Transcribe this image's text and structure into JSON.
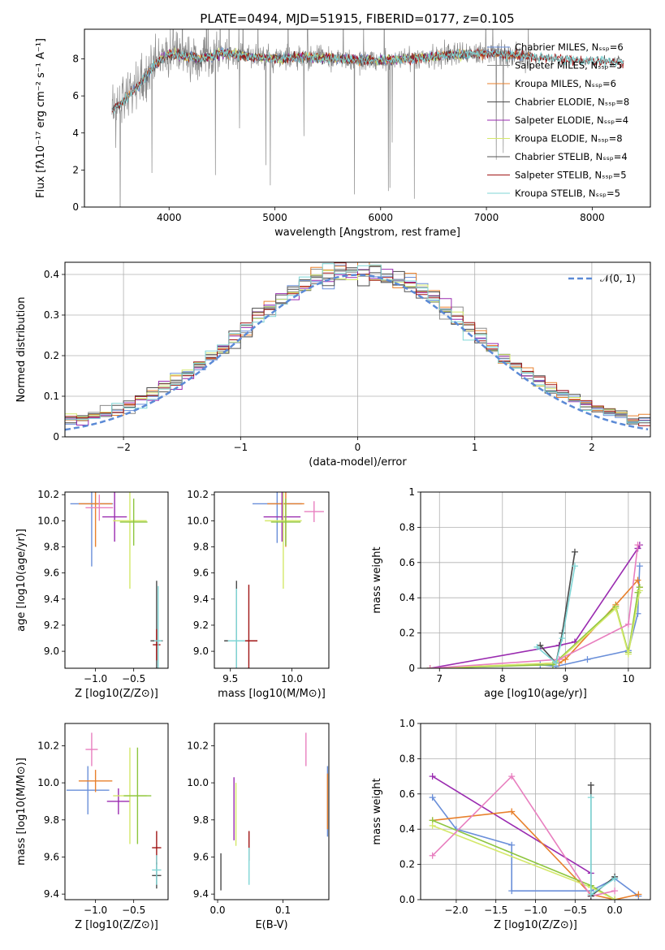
{
  "figure_title": "PLATE=0494, MJD=51915, FIBERID=0177, z=0.105",
  "colors": {
    "chabrier_miles": "#6a8fd9",
    "salpeter_miles": "#8a8a8a",
    "kroupa_miles": "#e8802c",
    "chabrier_elodie": "#4a4a4a",
    "salpeter_elodie": "#9a2bb0",
    "kroupa_elodie": "#d4e86a",
    "chabrier_stelib": "#555555",
    "salpeter_stelib": "#a01515",
    "kroupa_stelib": "#7fd6d6",
    "pink": "#e87fbf",
    "green": "#8ec63f"
  },
  "chart_data": [
    {
      "id": "spectrum",
      "type": "line",
      "xlabel": "wavelength [Angstrom, rest frame]",
      "ylabel": "Flux [fλ10⁻¹⁷ erg cm⁻² s⁻¹ A⁻¹]",
      "xlim": [
        3200,
        8550
      ],
      "ylim": [
        0,
        9.6
      ],
      "xticks": [
        4000,
        5000,
        6000,
        7000,
        8000
      ],
      "yticks": [
        0,
        2,
        4,
        6,
        8
      ],
      "legend_position": "top-right",
      "legend": [
        "Chabrier MILES, N_SSP=6",
        "Salpeter MILES, N_SSP=5",
        "Kroupa MILES, N_SSP=6",
        "Chabrier ELODIE, N_SSP=8",
        "Salpeter ELODIE, N_SSP=4",
        "Kroupa ELODIE, N_SSP=8",
        "Chabrier STELIB, N_SSP=4",
        "Salpeter STELIB, N_SSP=5",
        "Kroupa STELIB, N_SSP=5"
      ],
      "model_x": [
        3450,
        3550,
        3700,
        3850,
        4000,
        4100,
        4300,
        4500,
        4800,
        5000,
        5300,
        5600,
        6000,
        6300,
        6600,
        7000,
        7300,
        7600,
        8000,
        8300
      ],
      "model_y": [
        5.2,
        5.6,
        6.5,
        7.6,
        8.3,
        8.2,
        8.0,
        8.3,
        8.1,
        8.0,
        8.1,
        8.0,
        7.9,
        8.0,
        8.2,
        8.3,
        8.2,
        8.0,
        7.9,
        7.8
      ]
    },
    {
      "id": "residuals",
      "type": "histogram",
      "xlabel": "(data-model)/error",
      "ylabel": "Normed distribution",
      "xlim": [
        -2.5,
        2.5
      ],
      "ylim": [
        0,
        0.43
      ],
      "xticks": [
        -2,
        -1,
        0,
        1,
        2
      ],
      "yticks": [
        0.0,
        0.1,
        0.2,
        0.3,
        0.4
      ],
      "grid": true,
      "legend": [
        "𝒩(0, 1)"
      ],
      "legend_position": "top-right",
      "gaussian": {
        "mean": 0,
        "sigma": 1
      }
    },
    {
      "id": "age_vs_Z",
      "type": "errorbar",
      "xlabel": "Z [log10(Z/Z⊙)]",
      "ylabel": "age  [log10(age/yr)]",
      "xlim": [
        -1.4,
        -0.05
      ],
      "ylim": [
        8.87,
        10.22
      ],
      "xticks": [
        -1.0,
        -0.5
      ],
      "yticks": [
        9.0,
        9.2,
        9.4,
        9.6,
        9.8,
        10.0,
        10.2
      ],
      "points": [
        {
          "x": -1.05,
          "y": 10.13,
          "xe": 0.28,
          "ye": 0.48,
          "c": "chabrier_miles"
        },
        {
          "x": -1.0,
          "y": 10.13,
          "xe": 0.22,
          "ye": 0.33,
          "c": "kroupa_miles"
        },
        {
          "x": -0.75,
          "y": 10.03,
          "xe": 0.16,
          "ye": 0.19,
          "c": "salpeter_elodie"
        },
        {
          "x": -0.55,
          "y": 10.0,
          "xe": 0.22,
          "ye": 0.52,
          "c": "kroupa_elodie"
        },
        {
          "x": -0.5,
          "y": 9.99,
          "xe": 0.18,
          "ye": 0.18,
          "c": "green"
        },
        {
          "x": -0.95,
          "y": 10.1,
          "xe": 0.18,
          "ye": 0.1,
          "c": "pink"
        },
        {
          "x": -0.2,
          "y": 9.08,
          "xe": 0.08,
          "ye": 0.46,
          "c": "chabrier_elodie"
        },
        {
          "x": -0.2,
          "y": 9.05,
          "xe": 0.05,
          "ye": 0.12,
          "c": "salpeter_stelib"
        },
        {
          "x": -0.18,
          "y": 9.08,
          "xe": 0.05,
          "ye": 0.42,
          "c": "kroupa_stelib"
        }
      ]
    },
    {
      "id": "age_vs_mass",
      "type": "errorbar",
      "xlabel": "mass [log10(M/M⊙)]",
      "ylabel": "",
      "xlim": [
        9.37,
        10.3
      ],
      "ylim": [
        8.87,
        10.22
      ],
      "xticks": [
        9.5,
        10.0
      ],
      "yticks": [
        9.0,
        9.2,
        9.4,
        9.6,
        9.8,
        10.0,
        10.2
      ],
      "points": [
        {
          "x": 9.88,
          "y": 10.13,
          "xe": 0.2,
          "ye": 0.3,
          "c": "chabrier_miles"
        },
        {
          "x": 9.95,
          "y": 10.13,
          "xe": 0.15,
          "ye": 0.33,
          "c": "kroupa_miles"
        },
        {
          "x": 9.92,
          "y": 10.03,
          "xe": 0.15,
          "ye": 0.19,
          "c": "salpeter_elodie"
        },
        {
          "x": 9.93,
          "y": 10.0,
          "xe": 0.15,
          "ye": 0.52,
          "c": "kroupa_elodie"
        },
        {
          "x": 9.95,
          "y": 9.99,
          "xe": 0.12,
          "ye": 0.18,
          "c": "green"
        },
        {
          "x": 10.18,
          "y": 10.07,
          "xe": 0.08,
          "ye": 0.08,
          "c": "pink"
        },
        {
          "x": 9.55,
          "y": 9.08,
          "xe": 0.1,
          "ye": 0.46,
          "c": "chabrier_elodie"
        },
        {
          "x": 9.65,
          "y": 9.08,
          "xe": 0.07,
          "ye": 0.43,
          "c": "salpeter_stelib"
        },
        {
          "x": 9.55,
          "y": 9.08,
          "xe": 0.07,
          "ye": 0.4,
          "c": "kroupa_stelib"
        }
      ]
    },
    {
      "id": "weight_vs_age",
      "type": "line",
      "xlabel": "age  [log10(age/yr)]",
      "ylabel": "mass weight",
      "xlim": [
        6.7,
        10.35
      ],
      "ylim": [
        0,
        1.0
      ],
      "xticks": [
        7,
        8,
        9,
        10
      ],
      "yticks": [
        0.0,
        0.2,
        0.4,
        0.6,
        0.8,
        1.0
      ],
      "grid": true,
      "series": [
        {
          "c": "chabrier_miles",
          "x": [
            6.85,
            8.6,
            8.85,
            9.35,
            10.0,
            10.15,
            10.18
          ],
          "y": [
            0.0,
            0.02,
            0.01,
            0.05,
            0.1,
            0.31,
            0.58
          ]
        },
        {
          "c": "salpeter_elodie",
          "x": [
            6.85,
            8.9,
            9.15,
            10.15,
            10.18
          ],
          "y": [
            0.0,
            0.13,
            0.15,
            0.68,
            0.7
          ]
        },
        {
          "c": "kroupa_miles",
          "x": [
            6.85,
            8.9,
            9.0,
            9.8,
            10.15,
            10.18
          ],
          "y": [
            0.0,
            0.03,
            0.05,
            0.36,
            0.5,
            0.46
          ]
        },
        {
          "c": "green",
          "x": [
            6.85,
            8.8,
            9.8,
            10.0,
            10.15,
            10.18
          ],
          "y": [
            0.0,
            0.02,
            0.35,
            0.09,
            0.43,
            0.46
          ]
        },
        {
          "c": "kroupa_elodie",
          "x": [
            6.85,
            8.85,
            9.8,
            10.0,
            10.18
          ],
          "y": [
            0.0,
            0.03,
            0.34,
            0.08,
            0.44
          ]
        },
        {
          "c": "pink",
          "x": [
            6.85,
            8.9,
            10.0,
            10.15
          ],
          "y": [
            0.0,
            0.05,
            0.25,
            0.7
          ]
        },
        {
          "c": "chabrier_elodie",
          "x": [
            8.6,
            8.85,
            8.95,
            9.15
          ],
          "y": [
            0.13,
            0.03,
            0.2,
            0.66
          ]
        },
        {
          "c": "kroupa_stelib",
          "x": [
            8.55,
            8.85,
            8.95,
            9.15
          ],
          "y": [
            0.12,
            0.03,
            0.17,
            0.58
          ]
        }
      ]
    },
    {
      "id": "mass_vs_Z",
      "type": "errorbar",
      "xlabel": "Z [log10(Z/Z⊙)]",
      "ylabel": "mass [log10(M/M⊙)]",
      "xlim": [
        -1.4,
        -0.05
      ],
      "ylim": [
        9.37,
        10.32
      ],
      "xticks": [
        -1.0,
        -0.5
      ],
      "yticks": [
        9.4,
        9.6,
        9.8,
        10.0,
        10.2
      ],
      "points": [
        {
          "x": -1.1,
          "y": 9.96,
          "xe": 0.28,
          "ye": 0.13,
          "c": "chabrier_miles"
        },
        {
          "x": -1.0,
          "y": 10.01,
          "xe": 0.22,
          "ye": 0.06,
          "c": "kroupa_miles"
        },
        {
          "x": -0.7,
          "y": 9.9,
          "xe": 0.15,
          "ye": 0.07,
          "c": "salpeter_elodie"
        },
        {
          "x": -0.55,
          "y": 9.93,
          "xe": 0.22,
          "ye": 0.26,
          "c": "kroupa_elodie"
        },
        {
          "x": -0.45,
          "y": 9.93,
          "xe": 0.18,
          "ye": 0.26,
          "c": "green"
        },
        {
          "x": -1.05,
          "y": 10.18,
          "xe": 0.08,
          "ye": 0.09,
          "c": "pink"
        },
        {
          "x": -0.2,
          "y": 9.5,
          "xe": 0.06,
          "ye": 0.07,
          "c": "chabrier_elodie"
        },
        {
          "x": -0.2,
          "y": 9.65,
          "xe": 0.06,
          "ye": 0.09,
          "c": "salpeter_stelib"
        },
        {
          "x": -0.2,
          "y": 9.53,
          "xe": 0.06,
          "ye": 0.08,
          "c": "kroupa_stelib"
        }
      ]
    },
    {
      "id": "mass_vs_ebv",
      "type": "errorbar",
      "xlabel": "E(B-V)",
      "ylabel": "",
      "xlim": [
        -0.005,
        0.17
      ],
      "ylim": [
        9.37,
        10.32
      ],
      "xticks": [
        0.0,
        0.1
      ],
      "yticks": [
        9.4,
        9.6,
        9.8,
        10.0,
        10.2
      ],
      "points": [
        {
          "x": 0.005,
          "y": 9.52,
          "xe": 0,
          "ye": 0.1,
          "c": "chabrier_elodie"
        },
        {
          "x": 0.025,
          "y": 9.86,
          "xe": 0,
          "ye": 0.17,
          "c": "salpeter_elodie"
        },
        {
          "x": 0.028,
          "y": 9.83,
          "xe": 0,
          "ye": 0.17,
          "c": "kroupa_elodie"
        },
        {
          "x": 0.048,
          "y": 9.66,
          "xe": 0,
          "ye": 0.08,
          "c": "salpeter_stelib"
        },
        {
          "x": 0.048,
          "y": 9.55,
          "xe": 0,
          "ye": 0.1,
          "c": "kroupa_stelib"
        },
        {
          "x": 0.135,
          "y": 10.18,
          "xe": 0,
          "ye": 0.09,
          "c": "pink"
        },
        {
          "x": 0.168,
          "y": 9.9,
          "xe": 0,
          "ye": 0.19,
          "c": "chabrier_miles"
        },
        {
          "x": 0.168,
          "y": 9.9,
          "xe": 0,
          "ye": 0.15,
          "c": "kroupa_miles"
        }
      ]
    },
    {
      "id": "weight_vs_Z",
      "type": "line",
      "xlabel": "Z [log10(Z/Z⊙)]",
      "ylabel": "mass weight",
      "xlim": [
        -2.45,
        0.45
      ],
      "ylim": [
        0,
        1.0
      ],
      "xticks": [
        -2.0,
        -1.5,
        -1.0,
        -0.5,
        0.0
      ],
      "yticks": [
        0.0,
        0.2,
        0.4,
        0.6,
        0.8,
        1.0
      ],
      "grid": true,
      "series": [
        {
          "c": "chabrier_miles",
          "x": [
            -2.3,
            -2.0,
            -1.3,
            -1.3,
            -0.3,
            0.0,
            0.3
          ],
          "y": [
            0.58,
            0.4,
            0.31,
            0.05,
            0.05,
            0.12,
            0.02
          ]
        },
        {
          "c": "salpeter_elodie",
          "x": [
            -2.3,
            -0.3,
            -0.3
          ],
          "y": [
            0.7,
            0.15,
            0.02
          ]
        },
        {
          "c": "kroupa_miles",
          "x": [
            -2.3,
            -1.3,
            -0.3,
            0.0,
            0.3
          ],
          "y": [
            0.45,
            0.5,
            0.03,
            0.0,
            0.03
          ]
        },
        {
          "c": "green",
          "x": [
            -2.3,
            -0.3,
            0.0
          ],
          "y": [
            0.45,
            0.08,
            0.0
          ]
        },
        {
          "c": "kroupa_elodie",
          "x": [
            -2.3,
            -0.3,
            0.0
          ],
          "y": [
            0.42,
            0.07,
            0.0
          ]
        },
        {
          "c": "pink",
          "x": [
            -2.3,
            -1.3,
            -0.3,
            0.0
          ],
          "y": [
            0.25,
            0.7,
            0.02,
            0.05
          ]
        },
        {
          "c": "chabrier_elodie",
          "x": [
            -0.3,
            -0.3,
            0.0
          ],
          "y": [
            0.65,
            0.02,
            0.13
          ]
        },
        {
          "c": "kroupa_stelib",
          "x": [
            -0.3,
            -0.3,
            0.0
          ],
          "y": [
            0.58,
            0.03,
            0.12
          ]
        }
      ]
    }
  ]
}
